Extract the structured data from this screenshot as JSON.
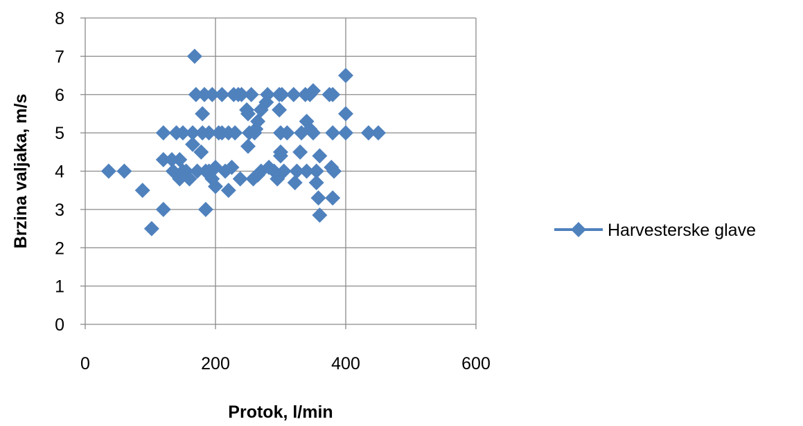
{
  "chart_data": {
    "type": "scatter",
    "title": "",
    "xlabel": "Protok, l/min",
    "ylabel": "Brzina valjaka, m/s",
    "xlim": [
      0,
      600
    ],
    "ylim": [
      0,
      8
    ],
    "xticks": [
      0,
      200,
      400,
      600
    ],
    "yticks": [
      0,
      1,
      2,
      3,
      4,
      5,
      6,
      7,
      8
    ],
    "x_tick_labels": [
      "0",
      "200",
      "400",
      "600"
    ],
    "y_tick_labels": [
      "0",
      "1",
      "2",
      "3",
      "4",
      "5",
      "6",
      "7",
      "8"
    ],
    "grid": true,
    "legend_position": "right",
    "marker": "diamond",
    "marker_color": "#4F81BD",
    "series": [
      {
        "name": "Harvesterske glave",
        "points": [
          [
            36,
            4.0
          ],
          [
            60,
            4.0
          ],
          [
            88,
            3.5
          ],
          [
            102,
            2.5
          ],
          [
            120,
            3.0
          ],
          [
            120,
            4.3
          ],
          [
            120,
            5.0
          ],
          [
            133,
            4.3
          ],
          [
            135,
            4.0
          ],
          [
            140,
            5.0
          ],
          [
            145,
            3.8
          ],
          [
            145,
            4.3
          ],
          [
            150,
            4.0
          ],
          [
            150,
            5.0
          ],
          [
            155,
            4.0
          ],
          [
            160,
            3.8
          ],
          [
            165,
            4.7
          ],
          [
            165,
            5.0
          ],
          [
            168,
            7.0
          ],
          [
            170,
            6.0
          ],
          [
            172,
            4.0
          ],
          [
            178,
            4.5
          ],
          [
            180,
            5.5
          ],
          [
            180,
            5.0
          ],
          [
            183,
            6.0
          ],
          [
            185,
            3.0
          ],
          [
            185,
            4.0
          ],
          [
            190,
            4.0
          ],
          [
            190,
            5.0
          ],
          [
            195,
            3.8
          ],
          [
            195,
            6.0
          ],
          [
            200,
            3.6
          ],
          [
            200,
            4.1
          ],
          [
            205,
            5.0
          ],
          [
            210,
            6.0
          ],
          [
            210,
            5.0
          ],
          [
            215,
            4.0
          ],
          [
            220,
            5.0
          ],
          [
            220,
            3.5
          ],
          [
            225,
            4.1
          ],
          [
            228,
            6.0
          ],
          [
            230,
            5.0
          ],
          [
            235,
            6.0
          ],
          [
            238,
            3.8
          ],
          [
            240,
            6.0
          ],
          [
            248,
            5.6
          ],
          [
            250,
            4.65
          ],
          [
            250,
            5.5
          ],
          [
            252,
            5.0
          ],
          [
            255,
            6.0
          ],
          [
            258,
            3.8
          ],
          [
            260,
            5.0
          ],
          [
            262,
            5.1
          ],
          [
            265,
            3.9
          ],
          [
            265,
            5.3
          ],
          [
            270,
            4.0
          ],
          [
            270,
            5.6
          ],
          [
            278,
            5.8
          ],
          [
            280,
            6.0
          ],
          [
            282,
            4.1
          ],
          [
            290,
            4.0
          ],
          [
            295,
            3.8
          ],
          [
            298,
            6.0
          ],
          [
            298,
            5.6
          ],
          [
            300,
            4.5
          ],
          [
            300,
            5.0
          ],
          [
            300,
            4.4
          ],
          [
            302,
            6.0
          ],
          [
            305,
            4.0
          ],
          [
            310,
            5.0
          ],
          [
            320,
            6.0
          ],
          [
            322,
            3.7
          ],
          [
            325,
            4.0
          ],
          [
            330,
            4.5
          ],
          [
            332,
            5.0
          ],
          [
            338,
            6.0
          ],
          [
            340,
            5.3
          ],
          [
            340,
            4.0
          ],
          [
            345,
            5.1
          ],
          [
            345,
            6.0
          ],
          [
            350,
            5.0
          ],
          [
            350,
            6.1
          ],
          [
            355,
            4.0
          ],
          [
            355,
            3.7
          ],
          [
            358,
            3.3
          ],
          [
            360,
            2.85
          ],
          [
            360,
            4.4
          ],
          [
            375,
            6.0
          ],
          [
            378,
            4.1
          ],
          [
            380,
            5.0
          ],
          [
            380,
            3.3
          ],
          [
            380,
            6.0
          ],
          [
            382,
            4.0
          ],
          [
            400,
            5.5
          ],
          [
            400,
            6.5
          ],
          [
            400,
            5.0
          ],
          [
            435,
            5.0
          ],
          [
            450,
            5.0
          ]
        ]
      }
    ]
  }
}
